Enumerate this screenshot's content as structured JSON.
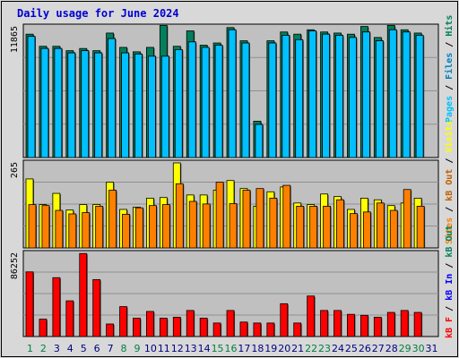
{
  "title": "Daily usage for June 2024",
  "colors": {
    "title": "#0000d0",
    "pages": "#00c0ff",
    "files": "#0080c0",
    "hits": "#00805c",
    "visits": "#ffff00",
    "sites": "#ff8000",
    "kb_out": "#c06000",
    "kb_in": "#0000ff",
    "kb_f": "#ff0000",
    "panel_bg": "#c0c0c0",
    "outer_bg": "#d8d8d8",
    "weekend_day": "#008040",
    "weekday_day": "#000080"
  },
  "chart_data": [
    {
      "type": "bar",
      "title": "Daily usage for June 2024",
      "scale_label": "11865",
      "ylim": [
        0,
        11865
      ],
      "grid": true,
      "legend": [
        "Pages",
        "Files",
        "Hits"
      ],
      "categories": [
        "1",
        "2",
        "3",
        "4",
        "5",
        "6",
        "7",
        "8",
        "9",
        "10",
        "11",
        "12",
        "13",
        "14",
        "15",
        "16",
        "17",
        "18",
        "19",
        "20",
        "21",
        "22",
        "23",
        "24",
        "25",
        "26",
        "27",
        "28",
        "29",
        "30"
      ],
      "series": [
        {
          "name": "Hits",
          "values": [
            11200,
            10100,
            10100,
            9700,
            9900,
            9700,
            11300,
            10000,
            9600,
            10000,
            12000,
            10100,
            11500,
            10200,
            10400,
            11800,
            10600,
            3300,
            10600,
            11400,
            11200,
            11600,
            11400,
            11300,
            11200,
            11900,
            10900,
            12000,
            11600,
            11300
          ]
        },
        {
          "name": "Files",
          "values": [
            11000,
            9900,
            9900,
            9500,
            9700,
            9500,
            10800,
            9500,
            9400,
            9200,
            9200,
            9800,
            10500,
            10000,
            10200,
            11600,
            10400,
            3000,
            10400,
            11100,
            10700,
            11500,
            11200,
            11100,
            10900,
            11400,
            10600,
            11600,
            11400,
            11100
          ]
        },
        {
          "name": "Pages",
          "values": [
            11000,
            9900,
            9900,
            9500,
            9700,
            9500,
            10800,
            9500,
            9400,
            9200,
            9200,
            9800,
            10500,
            10000,
            10200,
            11600,
            10400,
            3000,
            10400,
            11100,
            10700,
            11500,
            11200,
            11100,
            10900,
            11400,
            10600,
            11600,
            11400,
            11100
          ]
        }
      ]
    },
    {
      "type": "bar",
      "scale_label": "265",
      "ylim": [
        0,
        265
      ],
      "grid": true,
      "legend": [
        "Visits",
        "Sites",
        "KBytes Out"
      ],
      "series": [
        {
          "name": "Visits",
          "values": [
            215,
            135,
            170,
            118,
            135,
            135,
            205,
            120,
            127,
            155,
            157,
            265,
            165,
            165,
            180,
            210,
            185,
            130,
            175,
            190,
            140,
            135,
            168,
            160,
            120,
            155,
            150,
            132,
            140,
            155
          ]
        },
        {
          "name": "Sites",
          "values": [
            135,
            132,
            117,
            106,
            110,
            130,
            180,
            105,
            125,
            132,
            135,
            200,
            145,
            137,
            205,
            138,
            180,
            185,
            155,
            195,
            130,
            130,
            130,
            150,
            107,
            112,
            140,
            117,
            182,
            130
          ]
        }
      ]
    },
    {
      "type": "bar",
      "scale_label": "86252",
      "ylim": [
        0,
        86252
      ],
      "grid": true,
      "legend": [
        "KBytes In",
        "KBytes F"
      ],
      "series": [
        {
          "name": "KBytes F",
          "values": [
            67000,
            18000,
            61000,
            37000,
            86000,
            59000,
            13000,
            31000,
            19000,
            26000,
            19000,
            20000,
            27000,
            19000,
            14000,
            27000,
            15000,
            14000,
            14000,
            34000,
            14000,
            42000,
            27000,
            27000,
            23000,
            22000,
            20000,
            25000,
            27000,
            25000
          ]
        }
      ]
    }
  ],
  "x_labels": [
    "1",
    "2",
    "3",
    "4",
    "5",
    "6",
    "7",
    "8",
    "9",
    "10",
    "11",
    "12",
    "13",
    "14",
    "15",
    "16",
    "17",
    "18",
    "19",
    "20",
    "21",
    "22",
    "23",
    "24",
    "25",
    "26",
    "27",
    "28",
    "29",
    "30",
    "31"
  ],
  "weekend_days": [
    1,
    2,
    8,
    9,
    15,
    16,
    22,
    23,
    29,
    30
  ],
  "right_labels": {
    "panel1": [
      {
        "text": "Pages",
        "color": "pages"
      },
      {
        "text": " / ",
        "color": "slash"
      },
      {
        "text": "Files",
        "color": "files"
      },
      {
        "text": " / ",
        "color": "slash"
      },
      {
        "text": "Hits",
        "color": "hits"
      }
    ],
    "panel2": [
      {
        "text": "Sites",
        "color": "sites"
      },
      {
        "text": " / ",
        "color": "slash"
      },
      {
        "text": "kB Out",
        "color": "kb_out"
      },
      {
        "text": " / ",
        "color": "slash"
      },
      {
        "text": "Visits",
        "color": "visits"
      }
    ],
    "panel3": [
      {
        "text": "kB F",
        "color": "kb_f"
      },
      {
        "text": " / ",
        "color": "slash"
      },
      {
        "text": "kB In",
        "color": "kb_in"
      },
      {
        "text": " / ",
        "color": "slash"
      },
      {
        "text": "kB Out",
        "color": "hits"
      }
    ]
  }
}
